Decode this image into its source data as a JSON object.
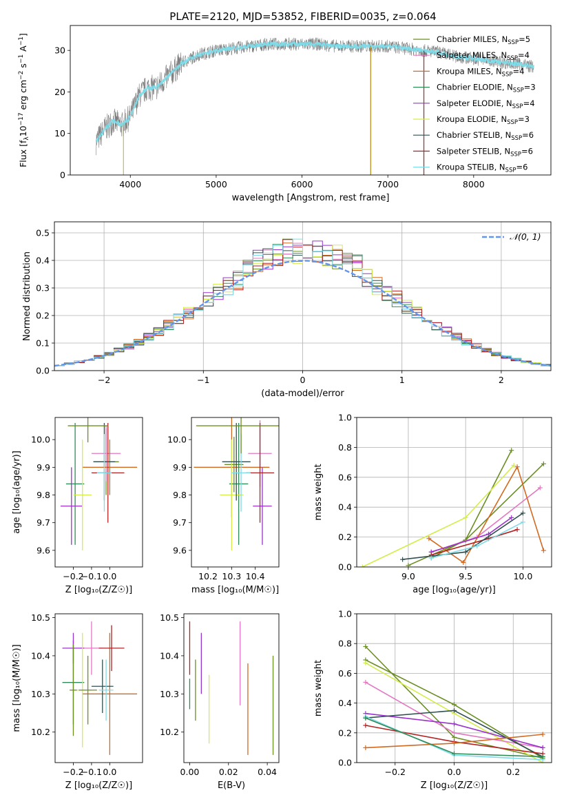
{
  "figure_title": "PLATE=2120, MJD=53852, FIBERID=0035, z=0.064",
  "models": [
    {
      "name": "Chabrier MILES",
      "nssp": "5",
      "color": "#6b8e23"
    },
    {
      "name": "Salpeter MILES",
      "nssp": "4",
      "color": "#e377c2"
    },
    {
      "name": "Kroupa MILES",
      "nssp": "4",
      "color": "#d2691e"
    },
    {
      "name": "Chabrier ELODIE",
      "nssp": "3",
      "color": "#2e8b57"
    },
    {
      "name": "Salpeter ELODIE",
      "nssp": "4",
      "color": "#9932cc"
    },
    {
      "name": "Kroupa ELODIE",
      "nssp": "3",
      "color": "#d4ed4a"
    },
    {
      "name": "Chabrier STELIB",
      "nssp": "6",
      "color": "#2f4f4f"
    },
    {
      "name": "Salpeter STELIB",
      "nssp": "6",
      "color": "#b22222"
    },
    {
      "name": "Kroupa STELIB",
      "nssp": "6",
      "color": "#7fdbe8"
    }
  ],
  "chart_data": [
    {
      "id": "spectrum",
      "type": "line",
      "xlabel": "wavelength [Angstrom, rest frame]",
      "ylabel_prefix": "Flux [f",
      "ylabel_sub": "λ",
      "ylabel_mid": "10",
      "ylabel_sup1": "−17",
      "ylabel_mid2": " erg cm",
      "ylabel_sup2": "−2",
      "ylabel_mid3": " s",
      "ylabel_sup3": "−1",
      "ylabel_mid4": " A",
      "ylabel_sup4": "−1",
      "ylabel_end": "]",
      "xlim": [
        3300,
        8900
      ],
      "ylim": [
        0,
        36
      ],
      "xticks": [
        4000,
        5000,
        6000,
        7000,
        8000
      ],
      "yticks": [
        0,
        10,
        20,
        30
      ],
      "legend_position": "right",
      "data_range": [
        3600,
        8700
      ],
      "observed_color": "#7f7f7f",
      "model_color": "#7fdbe8",
      "continuum": [
        [
          3600,
          8
        ],
        [
          3700,
          11
        ],
        [
          3800,
          13
        ],
        [
          3900,
          12
        ],
        [
          4000,
          14
        ],
        [
          4100,
          19
        ],
        [
          4200,
          21
        ],
        [
          4300,
          21
        ],
        [
          4400,
          23
        ],
        [
          4500,
          25
        ],
        [
          4600,
          27
        ],
        [
          4700,
          28
        ],
        [
          4800,
          29
        ],
        [
          4900,
          29.5
        ],
        [
          5000,
          30
        ],
        [
          5200,
          30.5
        ],
        [
          5400,
          31
        ],
        [
          5600,
          31.5
        ],
        [
          5800,
          31.5
        ],
        [
          6000,
          31.5
        ],
        [
          6200,
          31.5
        ],
        [
          6400,
          31
        ],
        [
          6600,
          31
        ],
        [
          6800,
          31
        ],
        [
          7000,
          31
        ],
        [
          7200,
          30.5
        ],
        [
          7400,
          30
        ],
        [
          7600,
          29.5
        ],
        [
          7800,
          28.5
        ],
        [
          8000,
          28
        ],
        [
          8200,
          27.5
        ],
        [
          8400,
          27
        ],
        [
          8600,
          26.5
        ],
        [
          8700,
          26
        ]
      ],
      "spikes": [
        [
          3920,
          0
        ],
        [
          6800,
          0
        ],
        [
          7420,
          0
        ]
      ]
    },
    {
      "id": "residuals",
      "type": "histogram",
      "xlabel": "(data-model)/error",
      "ylabel": "Normed distribution",
      "xlim": [
        -2.5,
        2.5
      ],
      "ylim": [
        0,
        0.54
      ],
      "xticks": [
        -2,
        -1,
        0,
        1,
        2
      ],
      "xticklabels": [
        "−2",
        "−1",
        "0",
        "1",
        "2"
      ],
      "yticks": [
        0,
        0.1,
        0.2,
        0.3,
        0.4,
        0.5
      ],
      "yticklabels": [
        "0.0",
        "0.1",
        "0.2",
        "0.3",
        "0.4",
        "0.5"
      ],
      "grid": true,
      "normal_label": "𝒩(0, 1)",
      "normal_color": "#6495ed",
      "legend_position": "top-right",
      "bin_edges_start": -2.5,
      "bin_width": 0.1,
      "n_bins": 50
    },
    {
      "id": "age-vs-Z",
      "type": "scatter",
      "xlabel": "Z [log₁₀(Z/Z☉)]",
      "ylabel": "age  [log₁₀(age/yr)]",
      "xlim": [
        -0.3,
        0.18
      ],
      "ylim": [
        9.54,
        10.08
      ],
      "xticks": [
        -0.2,
        -0.1,
        0.0
      ],
      "xticklabels": [
        "−0.2",
        "−0.1",
        "0.0"
      ],
      "yticks": [
        9.6,
        9.7,
        9.8,
        9.9,
        10.0
      ],
      "yticklabels": [
        "9.6",
        "9.7",
        "9.8",
        "9.9",
        "10.0"
      ],
      "points": [
        {
          "x": -0.02,
          "y": 9.92,
          "xerr": 0.07,
          "yerr": 0.12,
          "model": 0
        },
        {
          "x": -0.02,
          "y": 9.95,
          "xerr": 0.08,
          "yerr": 0.1,
          "model": 1
        },
        {
          "x": 0.0,
          "y": 9.9,
          "xerr": 0.15,
          "yerr": 0.1,
          "model": 2
        },
        {
          "x": -0.19,
          "y": 9.84,
          "xerr": 0.05,
          "yerr": 0.22,
          "model": 3
        },
        {
          "x": -0.21,
          "y": 9.76,
          "xerr": 0.06,
          "yerr": 0.14,
          "model": 4
        },
        {
          "x": -0.15,
          "y": 9.8,
          "xerr": 0.05,
          "yerr": 0.2,
          "model": 5
        },
        {
          "x": -0.03,
          "y": 9.92,
          "xerr": 0.06,
          "yerr": 0.14,
          "model": 6
        },
        {
          "x": -0.01,
          "y": 9.88,
          "xerr": 0.09,
          "yerr": 0.18,
          "model": 7
        },
        {
          "x": -0.03,
          "y": 9.88,
          "xerr": 0.04,
          "yerr": 0.14,
          "model": 8
        },
        {
          "x": -0.12,
          "y": 10.05,
          "xerr": 0.11,
          "yerr": 0.06,
          "model": 9
        }
      ]
    },
    {
      "id": "age-vs-mass",
      "type": "scatter",
      "xlabel": "mass [log₁₀(M/M☉)]",
      "ylabel": "",
      "xlim": [
        10.13,
        10.5
      ],
      "ylim": [
        9.54,
        10.08
      ],
      "xticks": [
        10.2,
        10.3,
        10.4
      ],
      "xticklabels": [
        "10.2",
        "10.3",
        "10.4"
      ],
      "yticks": [
        9.6,
        9.7,
        9.8,
        9.9,
        10.0
      ],
      "yticklabels": [
        "9.6",
        "9.7",
        "9.8",
        "9.9",
        "10.0"
      ],
      "points": [
        {
          "x": 10.31,
          "y": 9.91,
          "xerr": 0.04,
          "yerr": 0.1,
          "model": 0
        },
        {
          "x": 10.42,
          "y": 9.95,
          "xerr": 0.05,
          "yerr": 0.12,
          "model": 1
        },
        {
          "x": 10.3,
          "y": 9.9,
          "xerr": 0.16,
          "yerr": 0.18,
          "model": 2
        },
        {
          "x": 10.33,
          "y": 9.84,
          "xerr": 0.04,
          "yerr": 0.22,
          "model": 3
        },
        {
          "x": 10.43,
          "y": 9.76,
          "xerr": 0.04,
          "yerr": 0.14,
          "model": 4
        },
        {
          "x": 10.3,
          "y": 9.8,
          "xerr": 0.05,
          "yerr": 0.2,
          "model": 5
        },
        {
          "x": 10.32,
          "y": 9.92,
          "xerr": 0.06,
          "yerr": 0.14,
          "model": 6
        },
        {
          "x": 10.42,
          "y": 9.88,
          "xerr": 0.06,
          "yerr": 0.18,
          "model": 7
        },
        {
          "x": 10.34,
          "y": 9.88,
          "xerr": 0.04,
          "yerr": 0.14,
          "model": 8
        },
        {
          "x": 10.34,
          "y": 10.05,
          "xerr": 0.19,
          "yerr": 0.1,
          "model": 9
        }
      ]
    },
    {
      "id": "weight-vs-age",
      "type": "line",
      "xlabel": "age  [log₁₀(age/yr)]",
      "ylabel": "mass weight",
      "xlim": [
        8.55,
        10.25
      ],
      "ylim": [
        0,
        1.0
      ],
      "xticks": [
        9.0,
        9.5,
        10.0
      ],
      "xticklabels": [
        "9.0",
        "9.5",
        "10.0"
      ],
      "yticks": [
        0,
        0.2,
        0.4,
        0.6,
        0.8,
        1.0
      ],
      "yticklabels": [
        "0.0",
        "0.2",
        "0.4",
        "0.6",
        "0.8",
        "1.0"
      ],
      "grid": true,
      "series": [
        {
          "model": 9,
          "x": [
            9.0,
            9.5,
            10.18
          ],
          "y": [
            0.01,
            0.18,
            0.69
          ]
        },
        {
          "model": 0,
          "x": [
            9.2,
            9.5,
            9.9
          ],
          "y": [
            0.06,
            0.18,
            0.78
          ]
        },
        {
          "model": 1,
          "x": [
            9.2,
            9.6,
            10.15
          ],
          "y": [
            0.1,
            0.2,
            0.53
          ]
        },
        {
          "model": 2,
          "x": [
            9.18,
            9.48,
            9.95,
            10.18
          ],
          "y": [
            0.19,
            0.03,
            0.67,
            0.11
          ]
        },
        {
          "model": 5,
          "x": [
            8.6,
            9.5,
            9.92
          ],
          "y": [
            0.0,
            0.33,
            0.68
          ]
        },
        {
          "model": 4,
          "x": [
            9.2,
            9.7,
            9.9
          ],
          "y": [
            0.1,
            0.22,
            0.33
          ]
        },
        {
          "model": 7,
          "x": [
            9.2,
            9.7,
            9.95
          ],
          "y": [
            0.08,
            0.19,
            0.25
          ]
        },
        {
          "model": 6,
          "x": [
            8.95,
            9.5,
            10.0
          ],
          "y": [
            0.05,
            0.1,
            0.36
          ]
        },
        {
          "model": 8,
          "x": [
            9.2,
            9.6,
            10.0
          ],
          "y": [
            0.06,
            0.14,
            0.3
          ]
        }
      ]
    },
    {
      "id": "mass-vs-Z",
      "type": "scatter",
      "xlabel": "Z [log₁₀(Z/Z☉)]",
      "ylabel": "mass [log₁₀(M/M☉)]",
      "xlim": [
        -0.3,
        0.18
      ],
      "ylim": [
        10.12,
        10.51
      ],
      "xticks": [
        -0.2,
        -0.1,
        0.0
      ],
      "xticklabels": [
        "−0.2",
        "−0.1",
        "0.0"
      ],
      "yticks": [
        10.2,
        10.3,
        10.4,
        10.5
      ],
      "yticklabels": [
        "10.2",
        "10.3",
        "10.4",
        "10.5"
      ],
      "points": [
        {
          "x": -0.2,
          "y": 10.33,
          "xerr": 0.06,
          "yerr": 0.11,
          "model": 3
        },
        {
          "x": -0.1,
          "y": 10.42,
          "xerr": 0.06,
          "yerr": 0.07,
          "model": 1
        },
        {
          "x": 0.0,
          "y": 10.3,
          "xerr": 0.15,
          "yerr": 0.16,
          "model": 2
        },
        {
          "x": -0.2,
          "y": 10.42,
          "xerr": 0.06,
          "yerr": 0.04,
          "model": 4
        },
        {
          "x": -0.15,
          "y": 10.31,
          "xerr": 0.05,
          "yerr": 0.15,
          "model": 5
        },
        {
          "x": -0.04,
          "y": 10.32,
          "xerr": 0.06,
          "yerr": 0.07,
          "model": 6
        },
        {
          "x": 0.01,
          "y": 10.42,
          "xerr": 0.07,
          "yerr": 0.06,
          "model": 7
        },
        {
          "x": -0.02,
          "y": 10.31,
          "xerr": 0.04,
          "yerr": 0.08,
          "model": 8
        },
        {
          "x": -0.12,
          "y": 10.31,
          "xerr": 0.05,
          "yerr": 0.09,
          "model": 9
        },
        {
          "x": -0.2,
          "y": 10.31,
          "xerr": 0.02,
          "yerr": 0.12,
          "model": 0
        }
      ]
    },
    {
      "id": "mass-vs-ebv",
      "type": "scatter",
      "xlabel": "E(B-V)",
      "ylabel": "",
      "xlim": [
        -0.003,
        0.046
      ],
      "ylim": [
        10.12,
        10.51
      ],
      "xticks": [
        0.0,
        0.02,
        0.04
      ],
      "xticklabels": [
        "0.00",
        "0.02",
        "0.04"
      ],
      "yticks": [
        10.2,
        10.3,
        10.4,
        10.5
      ],
      "yticklabels": [
        "10.2",
        "10.3",
        "10.4",
        "10.5"
      ],
      "points": [
        {
          "x": 0.0,
          "y": 10.42,
          "xerr": 0,
          "yerr": 0.07,
          "model": 7
        },
        {
          "x": 0.0,
          "y": 10.3,
          "xerr": 0,
          "yerr": 0.04,
          "model": 3
        },
        {
          "x": 0.003,
          "y": 10.31,
          "xerr": 0,
          "yerr": 0.08,
          "model": 0
        },
        {
          "x": 0.006,
          "y": 10.38,
          "xerr": 0,
          "yerr": 0.08,
          "model": 4
        },
        {
          "x": 0.01,
          "y": 10.26,
          "xerr": 0,
          "yerr": 0.09,
          "model": 5
        },
        {
          "x": 0.026,
          "y": 10.38,
          "xerr": 0,
          "yerr": 0.11,
          "model": 1
        },
        {
          "x": 0.03,
          "y": 10.26,
          "xerr": 0,
          "yerr": 0.12,
          "model": 2
        },
        {
          "x": 0.043,
          "y": 10.27,
          "xerr": 0,
          "yerr": 0.13,
          "model": 9
        }
      ]
    },
    {
      "id": "weight-vs-Z",
      "type": "line",
      "xlabel": "Z [log₁₀(Z/Z☉)]",
      "ylabel": "mass weight",
      "xlim": [
        -0.33,
        0.33
      ],
      "ylim": [
        0,
        1.0
      ],
      "xticks": [
        -0.2,
        0.0,
        0.2
      ],
      "xticklabels": [
        "−0.2",
        "0.0",
        "0.2"
      ],
      "yticks": [
        0,
        0.2,
        0.4,
        0.6,
        0.8,
        1.0
      ],
      "yticklabels": [
        "0.0",
        "0.2",
        "0.4",
        "0.6",
        "0.8",
        "1.0"
      ],
      "grid": true,
      "series": [
        {
          "model": 0,
          "x": [
            -0.3,
            0.0,
            0.3
          ],
          "y": [
            0.78,
            0.17,
            0.03
          ]
        },
        {
          "model": 9,
          "x": [
            -0.3,
            0.0,
            0.3
          ],
          "y": [
            0.69,
            0.39,
            0.03
          ]
        },
        {
          "model": 5,
          "x": [
            -0.3,
            0.0,
            0.3
          ],
          "y": [
            0.67,
            0.33,
            0.0
          ]
        },
        {
          "model": 1,
          "x": [
            -0.3,
            0.0,
            0.3
          ],
          "y": [
            0.54,
            0.2,
            0.1
          ]
        },
        {
          "model": 4,
          "x": [
            -0.3,
            0.0,
            0.3
          ],
          "y": [
            0.33,
            0.26,
            0.1
          ]
        },
        {
          "model": 6,
          "x": [
            -0.3,
            0.0,
            0.3
          ],
          "y": [
            0.3,
            0.35,
            0.04
          ]
        },
        {
          "model": 7,
          "x": [
            -0.3,
            0.0,
            0.3
          ],
          "y": [
            0.25,
            0.14,
            0.06
          ]
        },
        {
          "model": 8,
          "x": [
            -0.3,
            0.0,
            0.3
          ],
          "y": [
            0.31,
            0.05,
            0.02
          ]
        },
        {
          "model": 2,
          "x": [
            -0.3,
            0.0,
            0.3
          ],
          "y": [
            0.1,
            0.13,
            0.19
          ]
        },
        {
          "model": 3,
          "x": [
            -0.3,
            0.0,
            0.3
          ],
          "y": [
            0.3,
            0.06,
            0.04
          ]
        }
      ]
    }
  ]
}
